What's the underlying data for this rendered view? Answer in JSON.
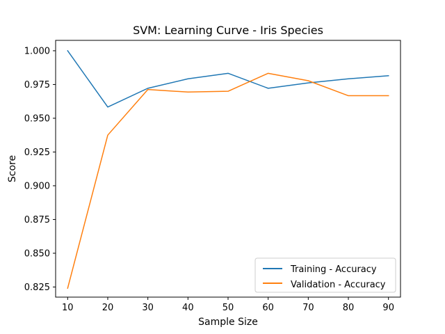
{
  "chart_data": {
    "type": "line",
    "title": "SVM: Learning Curve - Iris Species",
    "xlabel": "Sample Size",
    "ylabel": "Score",
    "x": [
      10,
      20,
      30,
      40,
      50,
      60,
      70,
      80,
      90
    ],
    "xlim": [
      7,
      93
    ],
    "ylim": [
      0.8175,
      1.0077
    ],
    "xticks": [
      "10",
      "20",
      "30",
      "40",
      "50",
      "60",
      "70",
      "80",
      "90"
    ],
    "yticks": [
      "0.825",
      "0.850",
      "0.875",
      "0.900",
      "0.925",
      "0.950",
      "0.975",
      "1.000"
    ],
    "grid": false,
    "legend_position": "lower-right",
    "series": [
      {
        "name": "Training - Accuracy",
        "color": "#1f77b4",
        "values": [
          1.0,
          0.9583,
          0.9722,
          0.9792,
          0.9833,
          0.9722,
          0.9762,
          0.9792,
          0.9815
        ]
      },
      {
        "name": "Validation - Accuracy",
        "color": "#ff7f0e",
        "values": [
          0.8241,
          0.9375,
          0.9713,
          0.9694,
          0.97,
          0.9833,
          0.9778,
          0.9667,
          0.9667
        ]
      }
    ]
  }
}
